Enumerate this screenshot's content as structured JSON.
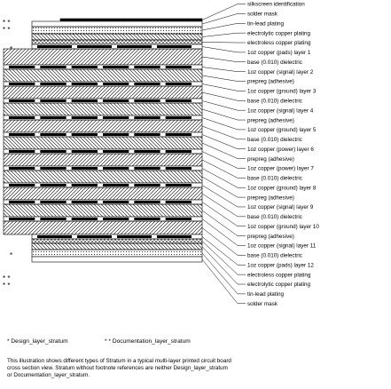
{
  "layers": [
    "silkscreen identification",
    "solder mask",
    "tin-lead plating",
    "electrolytic copper plating",
    "electroless copper plating",
    "1oz copper (pads) layer 1",
    "base (0.010) dielectric",
    "1oz copper (signal) layer 2",
    "prepreg (adhesive)",
    "1oz copper (ground) layer 3",
    "base (0.010) dielectric",
    "1oz copper (signal) layer 4",
    "prepreg (adhesive)",
    "1oz copper (ground) layer 5",
    "base (0.010) dielectric",
    "1oz copper (power) layer 6",
    "prepreg (adhesive)",
    "1oz copper (power) layer 7",
    "base (0.010) dielectric",
    "1oz copper (ground) layer 8",
    "prepreg (adhesive)",
    "1oz copper (signal) layer 9",
    "base (0.010) dielectric",
    "1oz copper (ground) layer 10",
    "prepreg (adhesive)",
    "1oz copper (signal) layer 11",
    "base (0.010) dielectric",
    "1oz copper (pads) layer 12",
    "electroless copper plating",
    "electrolytic copper plating",
    "tin-lead plating",
    "solder mask"
  ],
  "markers": {
    "design": "*",
    "documentation": "* *"
  },
  "legend": {
    "design_mark": "*",
    "design_text": "Design_layer_stratum",
    "documentation_mark": "* *",
    "documentation_text": "Documentation_layer_stratum"
  },
  "note_lines": [
    "This illustration shows different types of Stratum in a typical multi-layer printed circuit board",
    "cross section view. Stratum without footnote references are neither Design_layer_stratum",
    "or Documentation_layer_stratum."
  ]
}
